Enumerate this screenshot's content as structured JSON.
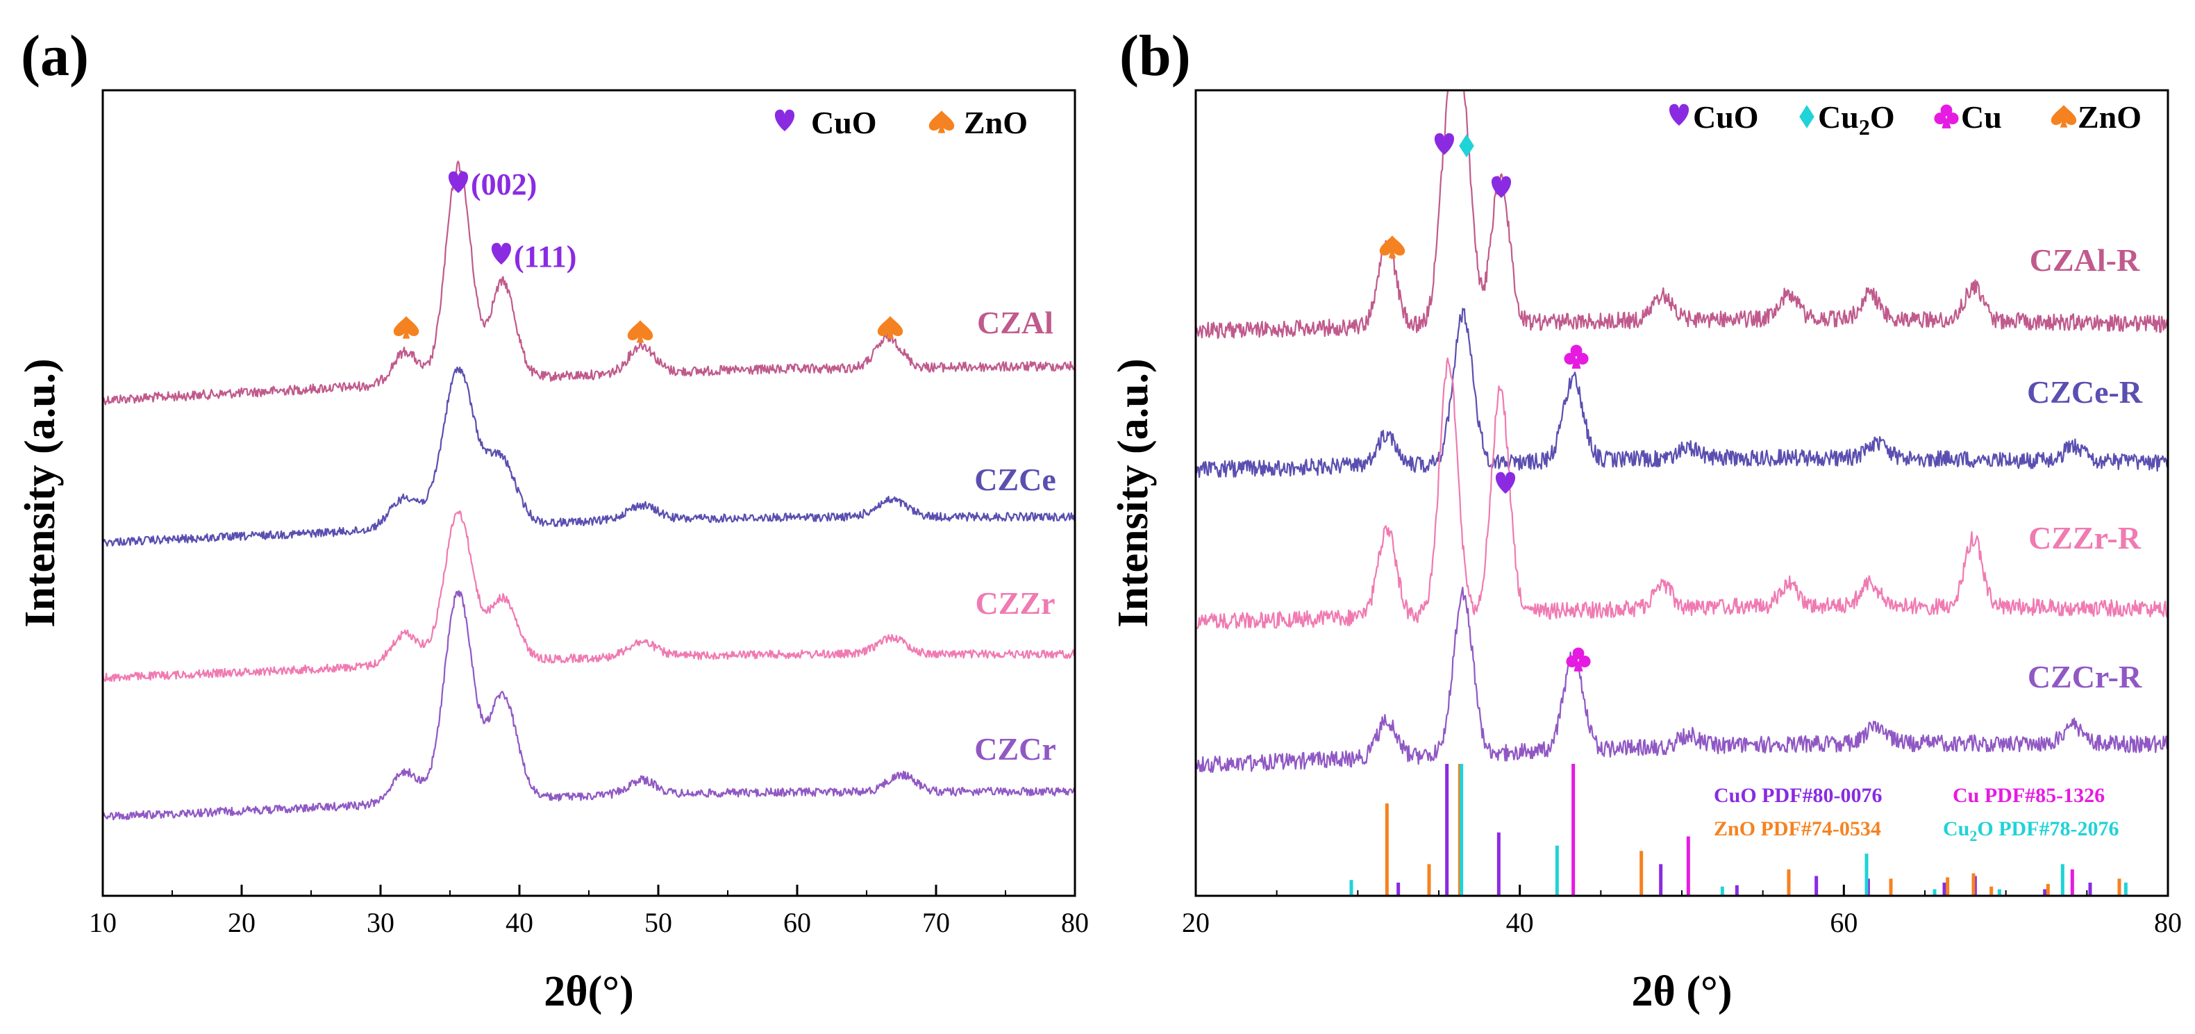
{
  "colors": {
    "CuO": "#8A2BE2",
    "ZnO": "#F58220",
    "Cu2O": "#1FD3D8",
    "Cu": "#E61BE2",
    "CZAl": "#C05A8C",
    "CZCe": "#5A4FB0",
    "CZZr": "#F07AB2",
    "CZCr": "#9058C4"
  },
  "panel_a": {
    "letter": "(a)",
    "legend": {
      "cuo": "CuO",
      "zno": "ZnO"
    },
    "peak_labels": {
      "p002": "(002)",
      "p111": "(111)"
    }
  },
  "panel_b": {
    "letter": "(b)",
    "legend": {
      "cuo": "CuO",
      "cu2o_main": "Cu",
      "cu2o_sub": "2",
      "cu2o_end": "O",
      "cu": "Cu",
      "zno": "ZnO"
    },
    "pdf_labels": {
      "cuo": "CuO PDF#80-0076",
      "cu": "Cu PDF#85-1326",
      "zno": "ZnO PDF#74-0534",
      "cu2o_a": "Cu",
      "cu2o_sub": "2",
      "cu2o_b": "O PDF#78-2076"
    }
  },
  "chart_data": [
    {
      "type": "line",
      "panel": "(a)",
      "xlabel": "2θ(°)",
      "ylabel": "Intensity (a.u.)",
      "xlim": [
        10,
        80
      ],
      "xticks": [
        "10",
        "20",
        "30",
        "40",
        "50",
        "60",
        "70",
        "80"
      ],
      "series": [
        {
          "name": "CZAl",
          "peaks": [
            [
              31.8,
              0.15
            ],
            [
              35.6,
              1.0
            ],
            [
              38.8,
              0.45
            ],
            [
              48.8,
              0.13
            ],
            [
              66.6,
              0.14
            ]
          ]
        },
        {
          "name": "CZCe",
          "peaks": [
            [
              31.8,
              0.15
            ],
            [
              35.6,
              0.75
            ],
            [
              38.6,
              0.32
            ],
            [
              48.8,
              0.07
            ],
            [
              66.8,
              0.08
            ]
          ]
        },
        {
          "name": "CZZr",
          "peaks": [
            [
              31.8,
              0.15
            ],
            [
              35.6,
              0.72
            ],
            [
              38.8,
              0.3
            ],
            [
              48.8,
              0.07
            ],
            [
              66.8,
              0.08
            ]
          ]
        },
        {
          "name": "CZCr",
          "peaks": [
            [
              31.8,
              0.15
            ],
            [
              35.6,
              1.0
            ],
            [
              38.8,
              0.5
            ],
            [
              48.8,
              0.07
            ],
            [
              67.5,
              0.08
            ]
          ]
        }
      ],
      "legend": [
        "CuO",
        "ZnO"
      ],
      "annotations": [
        "(002)",
        "(111)"
      ]
    },
    {
      "type": "line",
      "panel": "(b)",
      "xlabel": "2θ (°)",
      "ylabel": "Intensity (a.u.)",
      "xlim": [
        20,
        80
      ],
      "xticks": [
        "20",
        "40",
        "60",
        "80"
      ],
      "series": [
        {
          "name": "CZAl-R",
          "peaks": [
            [
              31.8,
              0.4
            ],
            [
              35.6,
              0.9
            ],
            [
              36.5,
              0.95
            ],
            [
              38.8,
              0.7
            ],
            [
              48.8,
              0.12
            ],
            [
              56.6,
              0.12
            ],
            [
              61.6,
              0.12
            ],
            [
              68,
              0.16
            ]
          ]
        },
        {
          "name": "CZCe-R",
          "peaks": [
            [
              31.8,
              0.25
            ],
            [
              36.5,
              1.2
            ],
            [
              43.3,
              0.65
            ],
            [
              50.4,
              0.08
            ],
            [
              62,
              0.12
            ],
            [
              74.2,
              0.12
            ]
          ]
        },
        {
          "name": "CZZr-R",
          "peaks": [
            [
              31.8,
              0.45
            ],
            [
              35.6,
              1.3
            ],
            [
              38.8,
              1.15
            ],
            [
              48.8,
              0.12
            ],
            [
              56.6,
              0.12
            ],
            [
              61.6,
              0.12
            ],
            [
              68,
              0.35
            ]
          ]
        },
        {
          "name": "CZCr-R",
          "peaks": [
            [
              31.8,
              0.25
            ],
            [
              36.5,
              1.1
            ],
            [
              43.3,
              0.65
            ],
            [
              50.4,
              0.08
            ],
            [
              62,
              0.12
            ],
            [
              74.2,
              0.12
            ]
          ]
        }
      ],
      "legend": [
        "CuO",
        "Cu2O",
        "Cu",
        "ZnO"
      ],
      "reference_patterns": [
        {
          "name": "CuO PDF#80-0076",
          "lines": [
            [
              32.5,
              0.1
            ],
            [
              35.5,
              1.0
            ],
            [
              38.7,
              0.48
            ],
            [
              48.7,
              0.24
            ],
            [
              53.4,
              0.08
            ],
            [
              58.3,
              0.15
            ],
            [
              61.5,
              0.13
            ],
            [
              66.2,
              0.1
            ],
            [
              68.1,
              0.15
            ],
            [
              72.4,
              0.05
            ],
            [
              75.2,
              0.1
            ]
          ]
        },
        {
          "name": "Cu PDF#85-1326",
          "lines": [
            [
              43.3,
              1.0
            ],
            [
              50.4,
              0.45
            ],
            [
              74.1,
              0.2
            ]
          ]
        },
        {
          "name": "ZnO PDF#74-0534",
          "lines": [
            [
              31.8,
              0.7
            ],
            [
              34.4,
              0.24
            ],
            [
              36.3,
              1.0
            ],
            [
              47.5,
              0.34
            ],
            [
              56.6,
              0.2
            ],
            [
              62.9,
              0.13
            ],
            [
              66.4,
              0.14
            ],
            [
              68,
              0.17
            ],
            [
              69.1,
              0.07
            ],
            [
              72.6,
              0.09
            ],
            [
              77,
              0.13
            ]
          ]
        },
        {
          "name": "Cu2O PDF#78-2076",
          "lines": [
            [
              29.6,
              0.12
            ],
            [
              36.4,
              1.0
            ],
            [
              42.3,
              0.38
            ],
            [
              52.5,
              0.07
            ],
            [
              61.4,
              0.32
            ],
            [
              65.6,
              0.05
            ],
            [
              69.6,
              0.05
            ],
            [
              73.5,
              0.24
            ],
            [
              77.4,
              0.1
            ]
          ]
        }
      ]
    }
  ]
}
